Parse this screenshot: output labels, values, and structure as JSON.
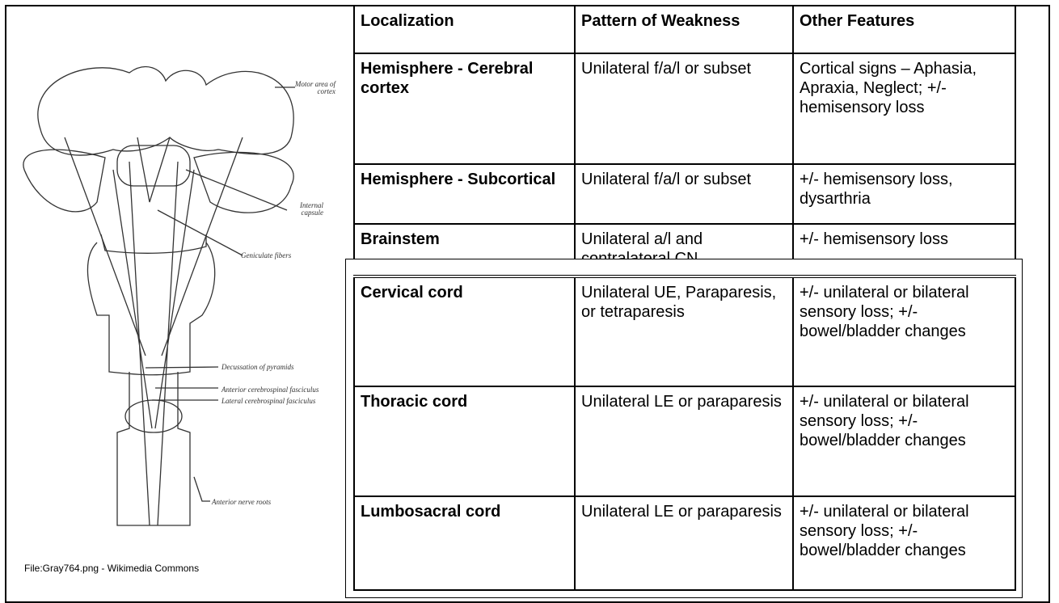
{
  "figure": {
    "labels": [
      "Motor area of cortex",
      "Internal capsule",
      "Geniculate fibers",
      "Decussation of pyramids",
      "Anterior cerebrospinal fasciculus",
      "Lateral cerebrospinal fasciculus",
      "Anterior nerve roots"
    ],
    "caption": "File:Gray764.png - Wikimedia Commons"
  },
  "table_top": {
    "header": [
      "Localization",
      "Pattern of Weakness",
      "Other Features"
    ],
    "rows": [
      [
        "Hemisphere - Cerebral cortex",
        "Unilateral f/a/l or subset",
        "Cortical signs – Aphasia, Apraxia, Neglect; +/- hemisensory loss"
      ],
      [
        "Hemisphere - Subcortical",
        "Unilateral f/a/l or subset",
        "+/- hemisensory loss, dysarthria"
      ],
      [
        "Brainstem",
        "Unilateral a/l and contralateral CN",
        "+/- hemisensory loss"
      ]
    ]
  },
  "table_bottom": {
    "rows": [
      [
        "Cervical cord",
        "Unilateral UE, Paraparesis, or tetraparesis",
        "+/- unilateral or bilateral sensory loss; +/- bowel/bladder changes"
      ],
      [
        "Thoracic cord",
        "Unilateral LE or paraparesis",
        "+/- unilateral or bilateral sensory loss; +/- bowel/bladder changes"
      ],
      [
        "Lumbosacral cord",
        "Unilateral LE or paraparesis",
        "+/- unilateral or bilateral sensory loss; +/- bowel/bladder changes"
      ]
    ]
  }
}
